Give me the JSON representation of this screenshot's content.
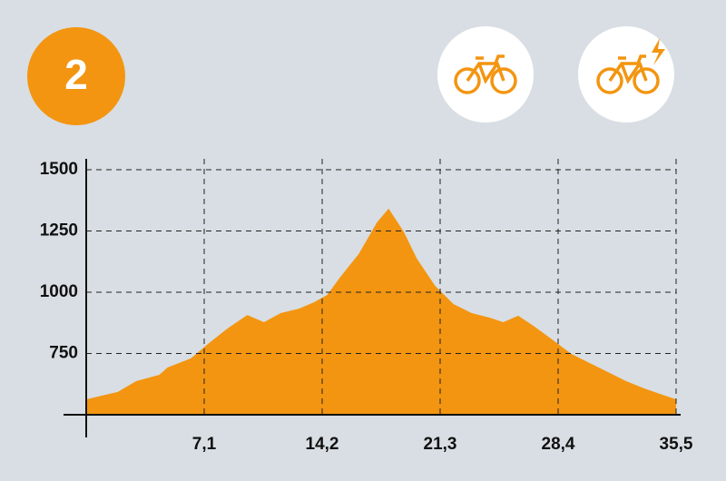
{
  "badge": "2",
  "chart_data": {
    "type": "area",
    "color": "#f39510",
    "grid": true,
    "x": [
      0,
      1.9,
      3.0,
      4.4,
      4.9,
      6.3,
      7.4,
      8.5,
      9.7,
      10.7,
      11.7,
      12.8,
      13.7,
      14.5,
      15.3,
      16.4,
      17.5,
      18.2,
      19.1,
      19.9,
      21.0,
      22.1,
      23.2,
      24.3,
      25.1,
      26.0,
      27.0,
      28.1,
      29.2,
      30.3,
      31.4,
      32.5,
      33.6,
      34.7,
      35.5
    ],
    "values": [
      563,
      593,
      637,
      663,
      693,
      730,
      793,
      852,
      907,
      878,
      915,
      933,
      959,
      989,
      1063,
      1156,
      1285,
      1341,
      1248,
      1137,
      1026,
      952,
      915,
      896,
      878,
      904,
      859,
      804,
      748,
      711,
      674,
      637,
      607,
      581,
      563
    ],
    "xlim": [
      0,
      35.5
    ],
    "xticks": [
      {
        "value": 7.1,
        "label": "7,1"
      },
      {
        "value": 14.2,
        "label": "14,2"
      },
      {
        "value": 21.3,
        "label": "21,3"
      },
      {
        "value": 28.4,
        "label": "28,4"
      },
      {
        "value": 35.5,
        "label": "35,5"
      }
    ],
    "ylim": [
      500,
      1500
    ],
    "yticks": [
      750,
      1000,
      1250,
      1500
    ]
  }
}
